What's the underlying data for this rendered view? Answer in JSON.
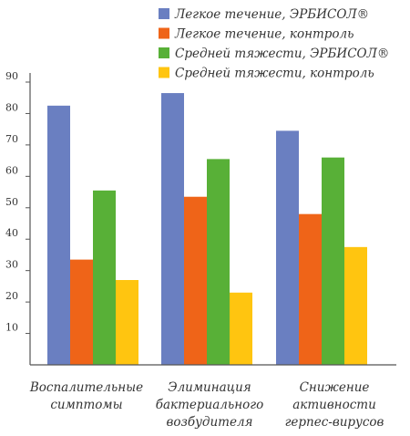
{
  "chart_data": {
    "type": "bar",
    "categories": [
      [
        "Воспалительные",
        "симптомы"
      ],
      [
        "Элиминация",
        "бактериального",
        "возбудителя"
      ],
      [
        "Снижение",
        "активности",
        "герпес-вирусов"
      ]
    ],
    "series": [
      {
        "name": "Легкое течение, ЭРБИСОЛ®",
        "color": "#6a7fc1",
        "values": [
          82.5,
          86.5,
          74.5
        ]
      },
      {
        "name": "Легкое течение, контроль",
        "color": "#ef6418",
        "values": [
          33.5,
          53.5,
          48
        ]
      },
      {
        "name": "Средней тяжести, ЭРБИСОЛ®",
        "color": "#58b037",
        "values": [
          55.5,
          65.5,
          66
        ]
      },
      {
        "name": "Средней тяжести, контроль",
        "color": "#ffc510",
        "values": [
          27,
          23,
          37.5
        ]
      }
    ],
    "yticks": [
      10,
      20,
      30,
      40,
      50,
      60,
      70,
      80,
      90
    ],
    "ylim": [
      0,
      90
    ],
    "legend_position": "top-right",
    "grid": false
  }
}
